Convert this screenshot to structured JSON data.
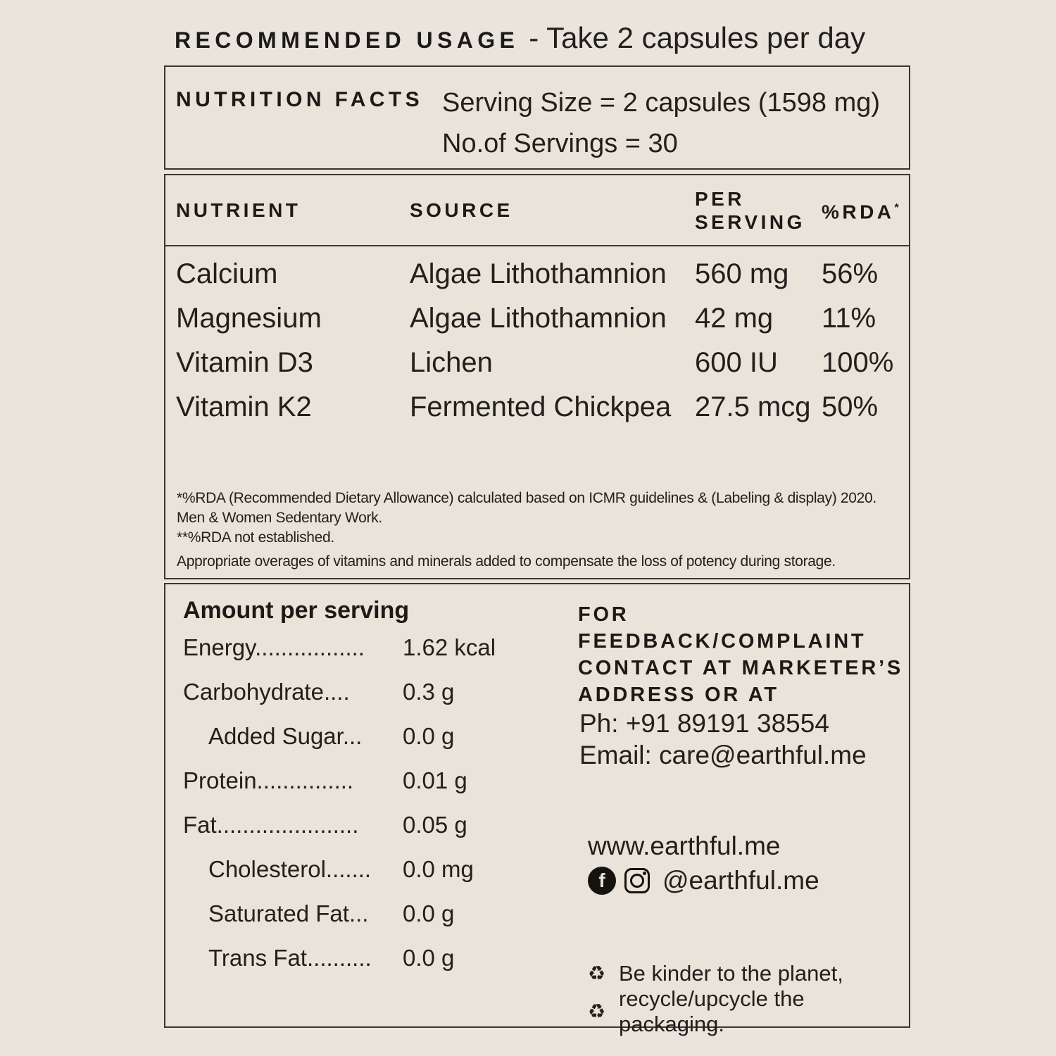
{
  "page": {
    "background": "#eae4dc",
    "border_color": "#3a372f",
    "text_color": "#21201c"
  },
  "usage_header": {
    "label": "RECOMMENDED USAGE",
    "rest": "- Take 2 capsules per day"
  },
  "facts_panel": {
    "title": "NUTRITION FACTS",
    "serving_size": "Serving Size = 2 capsules (1598 mg)",
    "servings_count": "No.of Servings = 30"
  },
  "nutrient_table": {
    "col_nutrient": "NUTRIENT",
    "col_source": "SOURCE",
    "col_per_serving_1": "PER",
    "col_per_serving_2": "SERVING",
    "col_rda": "%RDA",
    "col_rda_mark": "*",
    "rows": [
      {
        "nutrient": "Calcium",
        "source": "Algae Lithothamnion",
        "per_serving": "560 mg",
        "rda": "56%"
      },
      {
        "nutrient": "Magnesium",
        "source": "Algae Lithothamnion",
        "per_serving": "42 mg",
        "rda": "11%"
      },
      {
        "nutrient": "Vitamin D3",
        "source": "Lichen",
        "per_serving": "600 IU",
        "rda": "100%"
      },
      {
        "nutrient": "Vitamin K2",
        "source": "Fermented Chickpea",
        "per_serving": "27.5 mcg",
        "rda": "50%"
      }
    ],
    "footnote_lines": [
      "*%RDA (Recommended Dietary Allowance) calculated based on ICMR guidelines & (Labeling & display) 2020.",
      "Men & Women Sedentary Work.",
      "**%RDA not established.",
      "Appropriate overages of vitamins and minerals added to compensate the loss of potency during storage."
    ]
  },
  "amount_panel": {
    "title": "Amount per serving",
    "rows": [
      {
        "label": "Energy.................",
        "value": "1.62 kcal"
      },
      {
        "label": "Carbohydrate....",
        "value": "0.3 g"
      },
      {
        "label": "Added Sugar...",
        "value": "0.0 g"
      },
      {
        "label": "Protein...............",
        "value": "0.01 g"
      },
      {
        "label": "Fat......................",
        "value": "0.05 g"
      },
      {
        "label": "Cholesterol.......",
        "value": "0.0 mg"
      },
      {
        "label": "Saturated Fat...",
        "value": "0.0 g"
      },
      {
        "label": "Trans Fat..........",
        "value": "0.0 g"
      }
    ]
  },
  "contact_panel": {
    "heading_line1": "FOR FEEDBACK/COMPLAINT",
    "heading_line2": "CONTACT AT MARKETER’S",
    "heading_line3": "ADDRESS OR AT",
    "phone": "Ph: +91 89191 38554",
    "email": "Email: care@earthful.me",
    "website": "www.earthful.me",
    "social_handle": "@earthful.me",
    "facebook_glyph": "f",
    "recycle_symbol": "♻",
    "eco_line1": "Be kinder to the planet,",
    "eco_line2": "recycle/upcycle the packaging."
  }
}
